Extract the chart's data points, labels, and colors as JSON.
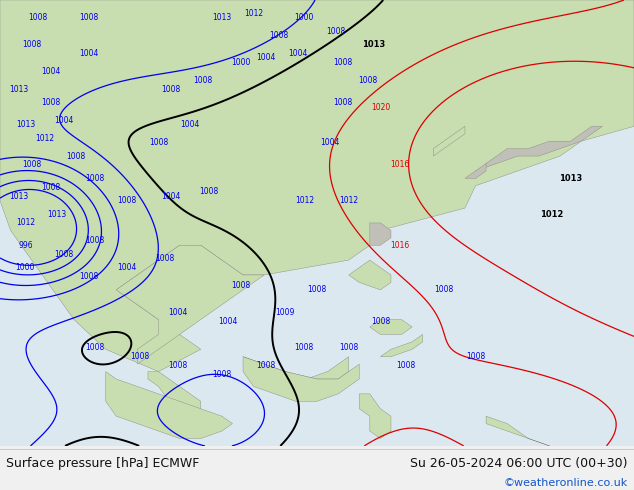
{
  "title_left": "Surface pressure [hPa] ECMWF",
  "title_right": "Su 26-05-2024 06:00 UTC (00+30)",
  "copyright": "©weatheronline.co.uk",
  "bg_color": "#f0f0f0",
  "ocean_color": "#dce8f0",
  "land_green": "#c8ddb0",
  "land_gray": "#c0c0b8",
  "bottom_bar_color": "#f0f0f0",
  "bottom_text_color": "#111111",
  "copyright_color": "#1155cc",
  "label_font_size": 9,
  "copyright_font_size": 8,
  "figure_width": 6.34,
  "figure_height": 4.9,
  "dpi": 100,
  "blue": "#0000ee",
  "black": "#000000",
  "red": "#dd0000",
  "border_color": "#888880"
}
